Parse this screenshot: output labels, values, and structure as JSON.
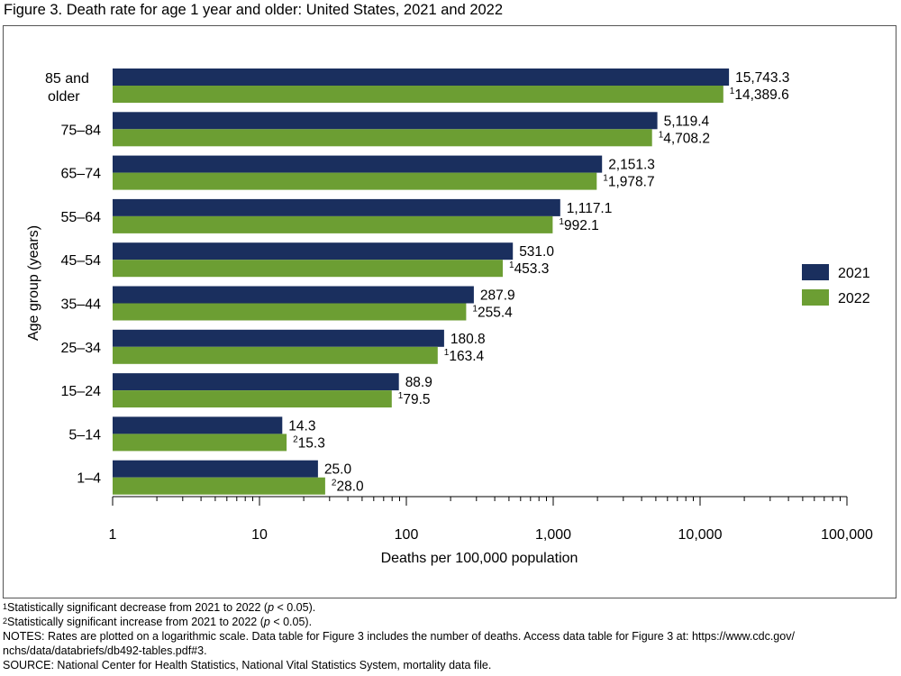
{
  "title": "Figure 3. Death rate for age 1 year and older: United States, 2021 and 2022",
  "chart_data": {
    "type": "bar",
    "orientation": "horizontal",
    "xscale": "log",
    "xlim": [
      1,
      100000
    ],
    "xlabel": "Deaths per 100,000 population",
    "ylabel": "Age group (years)",
    "x_ticks": [
      "1",
      "10",
      "100",
      "1,000",
      "10,000",
      "100,000"
    ],
    "categories": [
      "85 and older",
      "75–84",
      "65–74",
      "55–64",
      "45–54",
      "35–44",
      "25–34",
      "15–24",
      "5–14",
      "1–4"
    ],
    "category_lines": [
      [
        "85 and",
        "older"
      ],
      [
        "75–84"
      ],
      [
        "65–74"
      ],
      [
        "55–64"
      ],
      [
        "45–54"
      ],
      [
        "35–44"
      ],
      [
        "25–34"
      ],
      [
        "15–24"
      ],
      [
        "5–14"
      ],
      [
        "1–4"
      ]
    ],
    "series": [
      {
        "name": "2021",
        "color": "#1a2f5e",
        "values": [
          15743.3,
          5119.4,
          2151.3,
          1117.1,
          531.0,
          287.9,
          180.8,
          88.9,
          14.3,
          25.0
        ],
        "labels": [
          "15,743.3",
          "5,119.4",
          "2,151.3",
          "1,117.1",
          "531.0",
          "287.9",
          "180.8",
          "88.9",
          "14.3",
          "25.0"
        ],
        "markers": [
          "",
          "",
          "",
          "",
          "",
          "",
          "",
          "",
          "",
          ""
        ]
      },
      {
        "name": "2022",
        "color": "#6c9e33",
        "values": [
          14389.6,
          4708.2,
          1978.7,
          992.1,
          453.3,
          255.4,
          163.4,
          79.5,
          15.3,
          28.0
        ],
        "labels": [
          "14,389.6",
          "4,708.2",
          "1,978.7",
          "992.1",
          "453.3",
          "255.4",
          "163.4",
          "79.5",
          "15.3",
          "28.0"
        ],
        "markers": [
          "1",
          "1",
          "1",
          "1",
          "1",
          "1",
          "1",
          "1",
          "2",
          "2"
        ]
      }
    ],
    "legend_position": "right"
  },
  "footnotes": {
    "note1": {
      "marker": "1",
      "text": "Statistically significant decrease from 2021 to 2022 (",
      "p": "p",
      "tail": " < 0.05)."
    },
    "note2": {
      "marker": "2",
      "text": "Statistically significant increase from 2021 to 2022 (",
      "p": "p",
      "tail": " < 0.05)."
    },
    "notes_line1": "NOTES: Rates are plotted on a logarithmic scale. Data table for Figure 3 includes the number of deaths. Access data table for Figure 3 at: https://www.cdc.gov/",
    "notes_line2": "nchs/data/databriefs/db492-tables.pdf#3.",
    "source": "SOURCE: National Center for Health Statistics, National Vital Statistics System, mortality data file."
  }
}
